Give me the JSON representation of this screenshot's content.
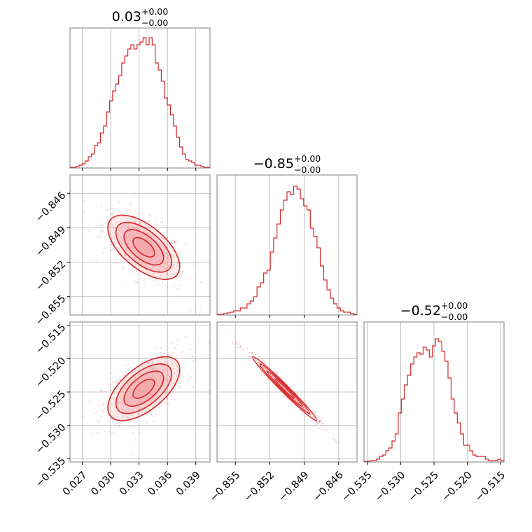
{
  "chart_data": {
    "type": "corner",
    "color": "#d62728",
    "contour_fill": "#f4a6a9",
    "grid": true,
    "parameters": [
      {
        "title_value": "0.03",
        "title_plus": "+0.00",
        "title_minus": "−0.00",
        "range": [
          0.0257,
          0.0405
        ],
        "ticks": [
          0.027,
          0.03,
          0.033,
          0.036,
          0.039
        ],
        "tick_labels": [
          "0.027",
          "0.030",
          "0.033",
          "0.036",
          "0.039"
        ],
        "mean": 0.0335,
        "sd": 0.0019
      },
      {
        "title_value": "−0.85",
        "title_plus": "+0.00",
        "title_minus": "−0.00",
        "range": [
          -0.8566,
          -0.8444
        ],
        "ticks": [
          -0.855,
          -0.852,
          -0.849,
          -0.846
        ],
        "tick_labels": [
          "−0.855",
          "−0.852",
          "−0.849",
          "−0.846"
        ],
        "mean": -0.8507,
        "sd": 0.0014
      },
      {
        "title_value": "−0.52",
        "title_plus": "+0.00",
        "title_minus": "−0.00",
        "range": [
          -0.5355,
          -0.5145
        ],
        "ticks": [
          -0.535,
          -0.53,
          -0.525,
          -0.52,
          -0.515
        ],
        "tick_labels": [
          "−0.535",
          "−0.530",
          "−0.525",
          "−0.520",
          "−0.515"
        ],
        "mean": -0.5245,
        "sd": 0.0024
      }
    ],
    "histograms": [
      [
        0.005,
        0.005,
        0.01,
        0.02,
        0.03,
        0.05,
        0.08,
        0.1,
        0.16,
        0.18,
        0.25,
        0.3,
        0.4,
        0.48,
        0.55,
        0.6,
        0.66,
        0.75,
        0.8,
        0.85,
        0.88,
        0.85,
        0.88,
        0.9,
        0.93,
        0.88,
        0.93,
        0.88,
        0.75,
        0.7,
        0.62,
        0.5,
        0.45,
        0.38,
        0.3,
        0.22,
        0.15,
        0.1,
        0.06,
        0.05,
        0.04,
        0.02,
        0.02,
        0.01,
        0.005,
        0.005
      ],
      [
        0.005,
        0.005,
        0.01,
        0.015,
        0.02,
        0.03,
        0.03,
        0.05,
        0.05,
        0.08,
        0.1,
        0.13,
        0.2,
        0.23,
        0.3,
        0.32,
        0.45,
        0.55,
        0.65,
        0.75,
        0.82,
        0.88,
        0.86,
        0.92,
        0.9,
        0.83,
        0.78,
        0.75,
        0.62,
        0.56,
        0.48,
        0.35,
        0.25,
        0.18,
        0.12,
        0.08,
        0.05,
        0.03,
        0.02,
        0.02,
        0.01,
        0.005
      ],
      [
        0.005,
        0.005,
        0.01,
        0.01,
        0.02,
        0.04,
        0.05,
        0.08,
        0.1,
        0.15,
        0.2,
        0.35,
        0.45,
        0.55,
        0.62,
        0.7,
        0.75,
        0.78,
        0.77,
        0.82,
        0.8,
        0.75,
        0.83,
        0.88,
        0.86,
        0.79,
        0.72,
        0.6,
        0.45,
        0.35,
        0.28,
        0.2,
        0.12,
        0.12,
        0.08,
        0.05,
        0.04,
        0.04,
        0.04,
        0.02,
        0.01,
        0.01,
        0.01,
        0.02,
        0.01
      ]
    ],
    "correlations": {
      "1-0": -0.6,
      "2-0": 0.6,
      "2-1": -0.985
    }
  }
}
